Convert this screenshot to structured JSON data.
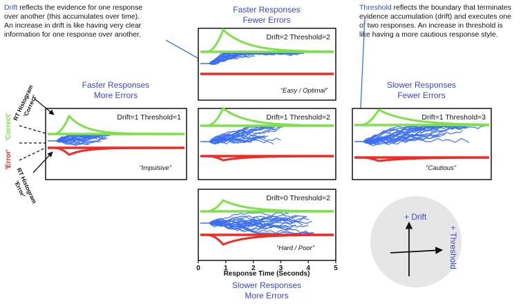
{
  "drift_note": {
    "keyword": "Drift",
    "lines": [
      " reflects the evidence for one response",
      "over another (this accumulates over time).",
      "An increase in drift is like having very clear",
      "information for one response over another."
    ]
  },
  "threshold_note": {
    "keyword": "Threshold",
    "lines": [
      " reflects the boundary that terminates",
      "evidence accumulation (drift) and executes one",
      "of two responses. An increase in threshold is",
      "like having a more cautious response style."
    ]
  },
  "panels": [
    {
      "param": "Drift=2 Threshold=2",
      "label": "“Easy / Optimal”",
      "caption": [
        "Faster Responses",
        "Fewer Errors"
      ],
      "drift": 2,
      "threshold": 2
    },
    {
      "param": "Drift=1 Threshold=1",
      "label": "“Impulsive”",
      "caption": [
        "Faster Responses",
        "More Errors"
      ],
      "drift": 1,
      "threshold": 1
    },
    {
      "param": "Drift=1 Threshold=2",
      "label": "",
      "caption": [],
      "drift": 1,
      "threshold": 2
    },
    {
      "param": "Drift=1 Threshold=3",
      "label": "“Cautious”",
      "caption": [
        "Slower Responses",
        "Fewer Errors"
      ],
      "drift": 1,
      "threshold": 3
    },
    {
      "param": "Drift=0 Threshold=2",
      "label": "“Hard / Poor”",
      "caption": [
        "Slower Responses",
        "More Errors"
      ],
      "drift": 0,
      "threshold": 2
    }
  ],
  "axis": {
    "ticks": [
      "0",
      "1",
      "2",
      "3",
      "4",
      "5"
    ],
    "xlabel": "Response Time (Seconds)"
  },
  "side_labels": {
    "correct_hist": [
      "RT Histogram",
      "'Correct'"
    ],
    "error_hist": [
      "RT Histogram",
      "'Error'"
    ],
    "correct": "'Correct'",
    "error": "'Error'"
  },
  "legend_axes": {
    "drift": "+ Drift",
    "threshold": "+ Threshold"
  },
  "colors": {
    "green": "#7ee04a",
    "red": "#ee2b24",
    "blue": "#3b6ff0",
    "label_blue": "#3a46c8",
    "circle": "#e6e6e6"
  }
}
